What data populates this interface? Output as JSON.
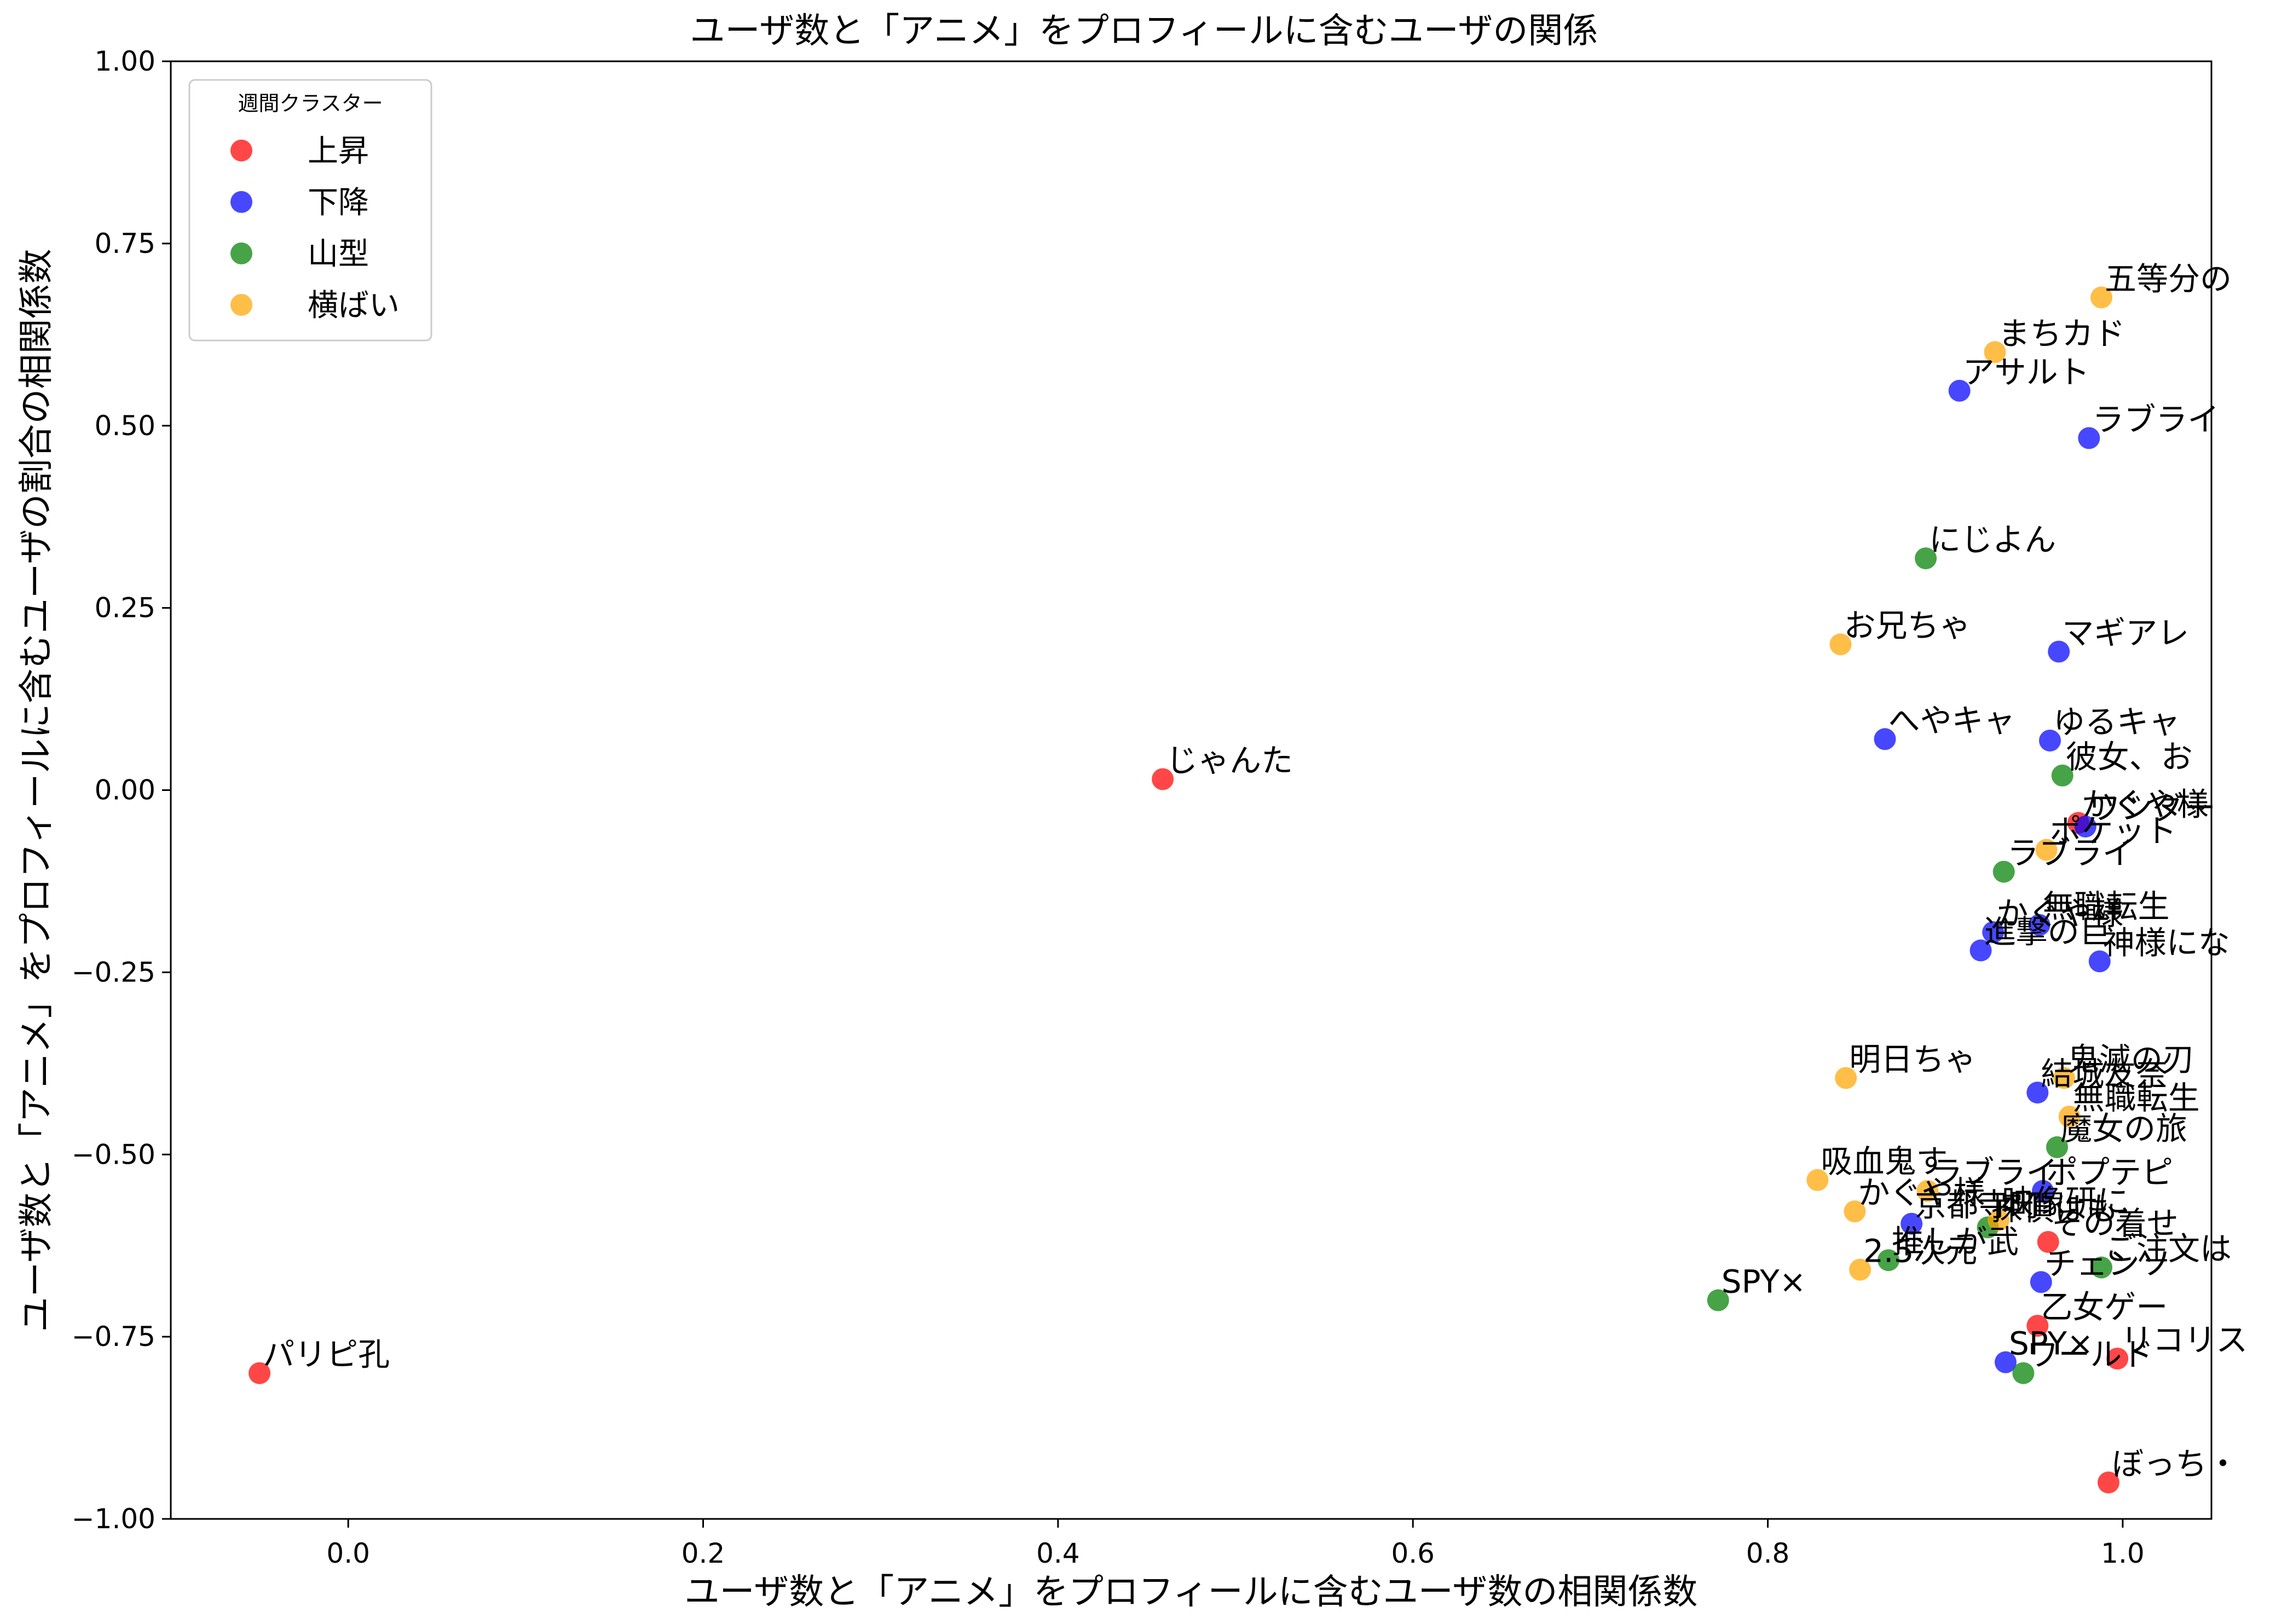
{
  "chart_data": {
    "type": "scatter",
    "title": "ユーザ数と「アニメ」をプロフィールに含むユーザの関係",
    "xlabel": "ユーザ数と「アニメ」をプロフィールに含むユーザ数の相関係数",
    "ylabel": "ユーザ数と「アニメ」をプロフィールに含むユーザの割合の相関係数",
    "xlim": [
      -0.1,
      1.05
    ],
    "ylim": [
      -1.0,
      1.0
    ],
    "x_ticks": [
      "0.0",
      "0.2",
      "0.4",
      "0.6",
      "0.8",
      "1.0"
    ],
    "x_tick_values": [
      0.0,
      0.2,
      0.4,
      0.6,
      0.8,
      1.0
    ],
    "y_ticks": [
      "−1.00",
      "−0.75",
      "−0.50",
      "−0.25",
      "0.00",
      "0.25",
      "0.50",
      "0.75",
      "1.00"
    ],
    "y_tick_values": [
      -1.0,
      -0.75,
      -0.5,
      -0.25,
      0.0,
      0.25,
      0.5,
      0.75,
      1.0
    ],
    "grid": false,
    "legend": {
      "title": "週間クラスター",
      "placement": "top-left",
      "entries": [
        {
          "label": "上昇",
          "color": "#ff0000"
        },
        {
          "label": "下降",
          "color": "#0000ff"
        },
        {
          "label": "山型",
          "color": "#008000"
        },
        {
          "label": "横ばい",
          "color": "#ffa500"
        }
      ]
    },
    "series": [
      {
        "name": "上昇",
        "color": "#ff0000",
        "points": [
          {
            "x": -0.05,
            "y": -0.8,
            "label": "パリピ孔"
          },
          {
            "x": 0.459,
            "y": 0.015,
            "label": "じゃんた"
          },
          {
            "x": 0.975,
            "y": -0.045,
            "label": "かぐや様"
          },
          {
            "x": 0.958,
            "y": -0.62,
            "label": "その着せ"
          },
          {
            "x": 0.952,
            "y": -0.735,
            "label": "乙女ゲー"
          },
          {
            "x": 0.997,
            "y": -0.78,
            "label": "リコリス"
          },
          {
            "x": 0.992,
            "y": -0.95,
            "label": "ぼっち・"
          }
        ]
      },
      {
        "name": "下降",
        "color": "#0000ff",
        "points": [
          {
            "x": 0.908,
            "y": 0.548,
            "label": "アサルト"
          },
          {
            "x": 0.981,
            "y": 0.483,
            "label": "ラブライ"
          },
          {
            "x": 0.964,
            "y": 0.19,
            "label": "マギアレ"
          },
          {
            "x": 0.866,
            "y": 0.07,
            "label": "へやキャ"
          },
          {
            "x": 0.959,
            "y": 0.068,
            "label": "ゆるキャ"
          },
          {
            "x": 0.979,
            "y": -0.05,
            "label": "ワンダー"
          },
          {
            "x": 0.927,
            "y": -0.195,
            "label": "かぐや様"
          },
          {
            "x": 0.953,
            "y": -0.185,
            "label": "無職転生"
          },
          {
            "x": 0.92,
            "y": -0.22,
            "label": "進撃の巨"
          },
          {
            "x": 0.987,
            "y": -0.235,
            "label": "神様にな"
          },
          {
            "x": 0.952,
            "y": -0.415,
            "label": "結城友奈"
          },
          {
            "x": 0.955,
            "y": -0.55,
            "label": "ポプテピ"
          },
          {
            "x": 0.881,
            "y": -0.595,
            "label": "京都寺町"
          },
          {
            "x": 0.954,
            "y": -0.675,
            "label": "チェンソ"
          },
          {
            "x": 0.934,
            "y": -0.785,
            "label": "SPY×"
          }
        ]
      },
      {
        "name": "山型",
        "color": "#008000",
        "points": [
          {
            "x": 0.889,
            "y": 0.318,
            "label": "にじよん"
          },
          {
            "x": 0.966,
            "y": 0.02,
            "label": "彼女、お"
          },
          {
            "x": 0.933,
            "y": -0.112,
            "label": "ラブライ"
          },
          {
            "x": 0.963,
            "y": -0.49,
            "label": "魔女の旅"
          },
          {
            "x": 0.924,
            "y": -0.6,
            "label": "探偵はも"
          },
          {
            "x": 0.868,
            "y": -0.645,
            "label": "推しが武"
          },
          {
            "x": 0.772,
            "y": -0.7,
            "label": "SPY×"
          },
          {
            "x": 0.944,
            "y": -0.8,
            "label": "ワールド"
          },
          {
            "x": 0.988,
            "y": -0.655,
            "label": "ご注文は"
          }
        ]
      },
      {
        "name": "横ばい",
        "color": "#ffa500",
        "points": [
          {
            "x": 0.988,
            "y": 0.676,
            "label": "五等分の"
          },
          {
            "x": 0.928,
            "y": 0.601,
            "label": "まちカド"
          },
          {
            "x": 0.841,
            "y": 0.2,
            "label": "お兄ちゃ"
          },
          {
            "x": 0.957,
            "y": -0.082,
            "label": "ポケット"
          },
          {
            "x": 0.844,
            "y": -0.395,
            "label": "明日ちゃ"
          },
          {
            "x": 0.967,
            "y": -0.395,
            "label": "鬼滅の刃"
          },
          {
            "x": 0.97,
            "y": -0.448,
            "label": "無職転生"
          },
          {
            "x": 0.828,
            "y": -0.535,
            "label": "吸血鬼す"
          },
          {
            "x": 0.89,
            "y": -0.55,
            "label": "ラブライ"
          },
          {
            "x": 0.849,
            "y": -0.578,
            "label": "かぐや様"
          },
          {
            "x": 0.852,
            "y": -0.658,
            "label": "2.5次元"
          },
          {
            "x": 0.93,
            "y": -0.59,
            "label": "映像研に"
          }
        ]
      }
    ]
  }
}
